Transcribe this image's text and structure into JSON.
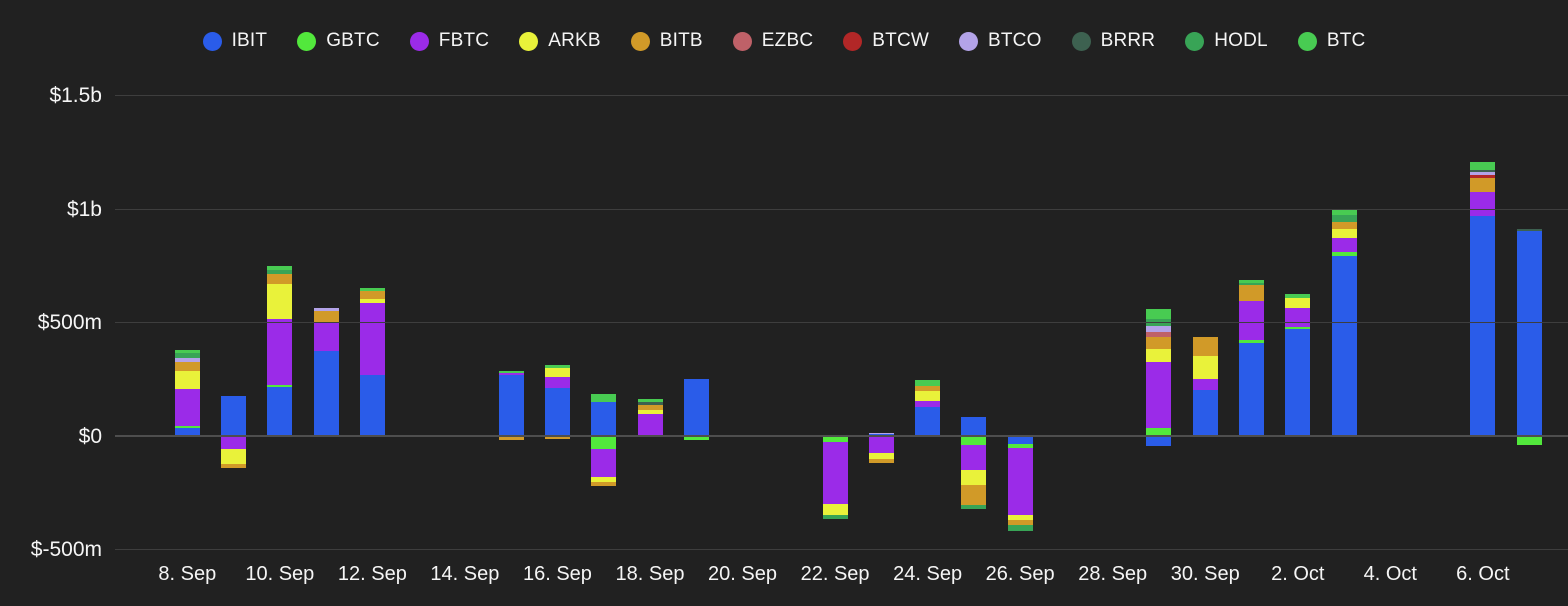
{
  "chart_data": {
    "type": "bar",
    "stacked": true,
    "ylim": [
      -500,
      1500
    ],
    "grid": true,
    "legend_position": "top-center",
    "value_unit": "USD millions",
    "series": [
      {
        "name": "IBIT",
        "color": "#2a5ce9"
      },
      {
        "name": "GBTC",
        "color": "#52e83c"
      },
      {
        "name": "FBTC",
        "color": "#9b2be8"
      },
      {
        "name": "ARKB",
        "color": "#e9f23a"
      },
      {
        "name": "BITB",
        "color": "#d19a28"
      },
      {
        "name": "EZBC",
        "color": "#bf6168"
      },
      {
        "name": "BTCW",
        "color": "#b22727"
      },
      {
        "name": "BTCO",
        "color": "#b3a3e8"
      },
      {
        "name": "BRRR",
        "color": "#3d6150"
      },
      {
        "name": "HODL",
        "color": "#38a456"
      },
      {
        "name": "BTC",
        "color": "#48cb52"
      }
    ],
    "yticks": [
      {
        "label": "$1.5b",
        "value": 1500
      },
      {
        "label": "$1b",
        "value": 1000
      },
      {
        "label": "$500m",
        "value": 500
      },
      {
        "label": "$0",
        "value": 0
      },
      {
        "label": "$-500m",
        "value": -500
      }
    ],
    "xticks": [
      {
        "label": "8. Sep",
        "day": 0
      },
      {
        "label": "10. Sep",
        "day": 2
      },
      {
        "label": "12. Sep",
        "day": 4
      },
      {
        "label": "14. Sep",
        "day": 6
      },
      {
        "label": "16. Sep",
        "day": 8
      },
      {
        "label": "18. Sep",
        "day": 10
      },
      {
        "label": "20. Sep",
        "day": 12
      },
      {
        "label": "22. Sep",
        "day": 14
      },
      {
        "label": "24. Sep",
        "day": 16
      },
      {
        "label": "26. Sep",
        "day": 18
      },
      {
        "label": "28. Sep",
        "day": 20
      },
      {
        "label": "30. Sep",
        "day": 22
      },
      {
        "label": "2. Oct",
        "day": 24
      },
      {
        "label": "4. Oct",
        "day": 26
      },
      {
        "label": "6. Oct",
        "day": 28
      }
    ],
    "bars": [
      {
        "date": "8. Sep",
        "day": 0,
        "values": {
          "IBIT": 34,
          "GBTC": 10,
          "FBTC": 162,
          "ARKB": 82,
          "BITB": 40,
          "BTCO": 15,
          "HODL": 22,
          "BTC": 16
        }
      },
      {
        "date": "9. Sep",
        "day": 1,
        "values": {
          "IBIT": 178,
          "FBTC": -56,
          "ARKB": -67,
          "BITB": -18
        }
      },
      {
        "date": "10. Sep",
        "day": 2,
        "values": {
          "IBIT": 216,
          "GBTC": 9,
          "FBTC": 291,
          "ARKB": 154,
          "BITB": 44,
          "HODL": 19,
          "BTC": 15
        }
      },
      {
        "date": "11. Sep",
        "day": 3,
        "values": {
          "IBIT": 374,
          "FBTC": 130,
          "BITB": 47,
          "BTCO": 15
        }
      },
      {
        "date": "12. Sep",
        "day": 4,
        "values": {
          "IBIT": 269,
          "FBTC": 316,
          "ARKB": 19,
          "BITB": 35,
          "BTC": 13
        }
      },
      {
        "date": "15. Sep",
        "day": 7,
        "values": {
          "IBIT": 267,
          "FBTC": 10,
          "BTC": 9,
          "BITB": -19
        }
      },
      {
        "date": "16. Sep",
        "day": 8,
        "values": {
          "IBIT": 212,
          "FBTC": 48,
          "ARKB": 41,
          "BTC": 13,
          "BITB": -15
        }
      },
      {
        "date": "17. Sep",
        "day": 9,
        "values": {
          "IBIT": 151,
          "BTC": 32,
          "GBTC": -57,
          "FBTC": -123,
          "ARKB": -22,
          "BITB": -19
        }
      },
      {
        "date": "18. Sep",
        "day": 10,
        "values": {
          "FBTC": 98,
          "ARKB": 15,
          "BITB": 22,
          "BRRR": 13,
          "BTC": 13
        }
      },
      {
        "date": "19. Sep",
        "day": 11,
        "values": {
          "IBIT": 251,
          "GBTC": -19
        }
      },
      {
        "date": "22. Sep",
        "day": 14,
        "values": {
          "GBTC": -25,
          "FBTC": -273,
          "ARKB": -48,
          "HODL": -19
        }
      },
      {
        "date": "23. Sep",
        "day": 15,
        "values": {
          "IBIT": 8,
          "BTCO": 7,
          "FBTC": -73,
          "ARKB": -28,
          "BITB": -18
        }
      },
      {
        "date": "24. Sep",
        "day": 16,
        "values": {
          "IBIT": 129,
          "FBTC": 25,
          "ARKB": 44,
          "BITB": 23,
          "BTC": 25
        }
      },
      {
        "date": "25. Sep",
        "day": 17,
        "values": {
          "IBIT": 85,
          "GBTC": -40,
          "FBTC": -110,
          "ARKB": -66,
          "BITB": -88,
          "HODL": -19
        }
      },
      {
        "date": "26. Sep",
        "day": 18,
        "values": {
          "IBIT": -35,
          "GBTC": -18,
          "FBTC": -296,
          "ARKB": -22,
          "BITB": -22,
          "HODL": -26
        }
      },
      {
        "date": "29. Sep",
        "day": 21,
        "values": {
          "IBIT": -42,
          "GBTC": 34,
          "FBTC": 291,
          "ARKB": 57,
          "BITB": 53,
          "EZBC": 21,
          "BTCO": 29,
          "HODL": 29,
          "BTC": 44
        }
      },
      {
        "date": "30. Sep",
        "day": 22,
        "values": {
          "IBIT": 203,
          "FBTC": 48,
          "ARKB": 103,
          "BITB": 81
        }
      },
      {
        "date": "1. Oct",
        "day": 23,
        "values": {
          "IBIT": 409,
          "GBTC": 15,
          "FBTC": 169,
          "BITB": 71,
          "HODL": 9,
          "BTC": 13
        }
      },
      {
        "date": "2. Oct",
        "day": 24,
        "values": {
          "IBIT": 471,
          "GBTC": 7,
          "FBTC": 85,
          "ARKB": 47,
          "BTC": 15
        }
      },
      {
        "date": "3. Oct",
        "day": 25,
        "values": {
          "IBIT": 794,
          "GBTC": 15,
          "FBTC": 63,
          "ARKB": 40,
          "BITB": 29,
          "HODL": 34,
          "BTC": 19
        }
      },
      {
        "date": "6. Oct",
        "day": 28,
        "values": {
          "IBIT": 970,
          "FBTC": 107,
          "BITB": 59,
          "BTCW": 13,
          "BTCO": 12,
          "BRRR": 10,
          "BTC": 35
        }
      },
      {
        "date": "7. Oct",
        "day": 29,
        "values": {
          "IBIT": 901,
          "BRRR": 9,
          "GBTC": -40
        }
      }
    ]
  }
}
